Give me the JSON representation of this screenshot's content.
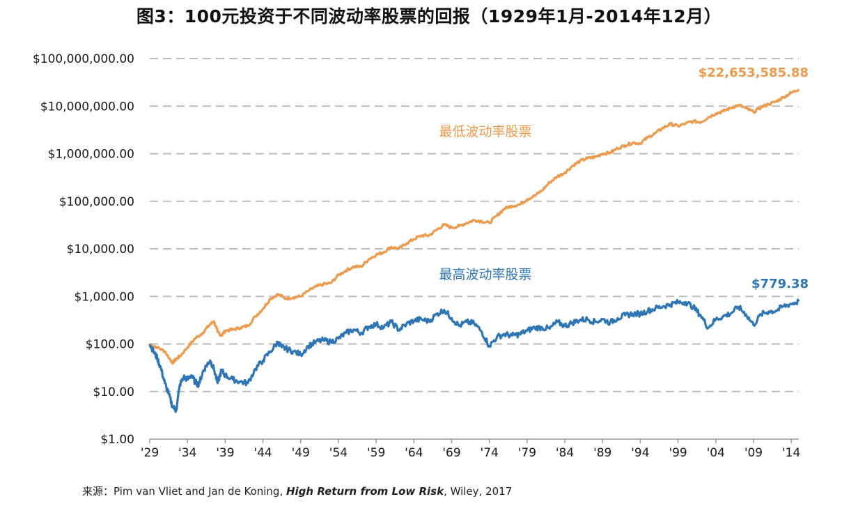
{
  "title": "图3：100元投资于不同波动率股票的回报（1929年1月-2014年12月）",
  "source": {
    "prefix": "来源：Pim van Vliet and Jan de Koning, ",
    "book": "High Return from Low Risk",
    "suffix": ", Wiley, 2017"
  },
  "colors": {
    "low_vol": "#EE9A4D",
    "high_vol": "#2E75B6",
    "grid": "#BBBBBB",
    "axis": "#9A9A9A"
  },
  "chart_data": {
    "type": "line",
    "title": "图3：100元投资于不同波动率股票的回报（1929年1月-2014年12月）",
    "xlabel": "",
    "ylabel": "",
    "y_scale": "log",
    "ylim": [
      1,
      100000000
    ],
    "xlim": [
      1929,
      2015
    ],
    "grid": "horizontal dashed",
    "yticks": [
      1,
      10,
      100,
      1000,
      10000,
      100000,
      1000000,
      10000000,
      100000000
    ],
    "ytick_labels": [
      "$1.00",
      "$10.00",
      "$100.00",
      "$1,000.00",
      "$10,000.00",
      "$100,000.00",
      "$1,000,000.00",
      "$10,000,000.00",
      "$100,000,000.00"
    ],
    "xticks": [
      1929,
      1934,
      1939,
      1944,
      1949,
      1954,
      1959,
      1964,
      1969,
      1974,
      1979,
      1984,
      1989,
      1994,
      1999,
      2004,
      2009,
      2014
    ],
    "xtick_labels": [
      "'29",
      "'34",
      "'39",
      "'44",
      "'49",
      "'54",
      "'59",
      "'64",
      "'69",
      "'74",
      "'79",
      "'84",
      "'89",
      "'94",
      "'99",
      "'04",
      "'09",
      "'14"
    ],
    "series": [
      {
        "name": "最低波动率股票",
        "color": "#EE9A4D",
        "end_label": "$22,653,585.88",
        "points": [
          [
            1929.0,
            100
          ],
          [
            1930.0,
            85
          ],
          [
            1931.0,
            70
          ],
          [
            1932.0,
            40
          ],
          [
            1932.5,
            48
          ],
          [
            1933.0,
            55
          ],
          [
            1934.0,
            85
          ],
          [
            1935.0,
            130
          ],
          [
            1936.0,
            170
          ],
          [
            1937.0,
            260
          ],
          [
            1937.5,
            300
          ],
          [
            1938.0,
            180
          ],
          [
            1938.5,
            150
          ],
          [
            1939.0,
            190
          ],
          [
            1940.0,
            200
          ],
          [
            1941.0,
            220
          ],
          [
            1942.0,
            240
          ],
          [
            1943.0,
            380
          ],
          [
            1944.0,
            550
          ],
          [
            1945.0,
            900
          ],
          [
            1946.0,
            1100
          ],
          [
            1947.0,
            900
          ],
          [
            1948.0,
            950
          ],
          [
            1949.0,
            1000
          ],
          [
            1950.0,
            1300
          ],
          [
            1951.0,
            1600
          ],
          [
            1952.0,
            1800
          ],
          [
            1953.0,
            1900
          ],
          [
            1954.0,
            2800
          ],
          [
            1955.0,
            3500
          ],
          [
            1956.0,
            4200
          ],
          [
            1957.0,
            4200
          ],
          [
            1958.0,
            6000
          ],
          [
            1959.0,
            7500
          ],
          [
            1960.0,
            8500
          ],
          [
            1961.0,
            11000
          ],
          [
            1962.0,
            10000
          ],
          [
            1963.0,
            13000
          ],
          [
            1964.0,
            16000
          ],
          [
            1965.0,
            19000
          ],
          [
            1966.0,
            19000
          ],
          [
            1967.0,
            25000
          ],
          [
            1968.0,
            32000
          ],
          [
            1969.0,
            28000
          ],
          [
            1970.0,
            30000
          ],
          [
            1971.0,
            35000
          ],
          [
            1972.0,
            40000
          ],
          [
            1973.0,
            38000
          ],
          [
            1974.0,
            35000
          ],
          [
            1975.0,
            50000
          ],
          [
            1976.0,
            70000
          ],
          [
            1977.0,
            80000
          ],
          [
            1978.0,
            85000
          ],
          [
            1979.0,
            110000
          ],
          [
            1980.0,
            130000
          ],
          [
            1981.0,
            170000
          ],
          [
            1982.0,
            250000
          ],
          [
            1983.0,
            330000
          ],
          [
            1984.0,
            400000
          ],
          [
            1985.0,
            550000
          ],
          [
            1986.0,
            700000
          ],
          [
            1987.0,
            800000
          ],
          [
            1988.0,
            850000
          ],
          [
            1989.0,
            1000000
          ],
          [
            1990.0,
            1050000
          ],
          [
            1991.0,
            1300000
          ],
          [
            1992.0,
            1500000
          ],
          [
            1993.0,
            1700000
          ],
          [
            1994.0,
            1650000
          ],
          [
            1995.0,
            2200000
          ],
          [
            1996.0,
            2700000
          ],
          [
            1997.0,
            3500000
          ],
          [
            1998.0,
            4200000
          ],
          [
            1999.0,
            3800000
          ],
          [
            2000.0,
            4300000
          ],
          [
            2001.0,
            4800000
          ],
          [
            2002.0,
            4600000
          ],
          [
            2003.0,
            5800000
          ],
          [
            2004.0,
            7000000
          ],
          [
            2005.0,
            7800000
          ],
          [
            2006.0,
            9200000
          ],
          [
            2007.0,
            10500000
          ],
          [
            2008.0,
            9000000
          ],
          [
            2009.0,
            7500000
          ],
          [
            2010.0,
            9500000
          ],
          [
            2011.0,
            11000000
          ],
          [
            2012.0,
            12500000
          ],
          [
            2013.0,
            15500000
          ],
          [
            2014.0,
            19000000
          ],
          [
            2015.0,
            22653585.88
          ]
        ]
      },
      {
        "name": "最高波动率股票",
        "color": "#2E75B6",
        "end_label": "$779.38",
        "points": [
          [
            1929.0,
            100
          ],
          [
            1929.5,
            70
          ],
          [
            1930.0,
            50
          ],
          [
            1930.5,
            30
          ],
          [
            1931.0,
            15
          ],
          [
            1931.5,
            9
          ],
          [
            1932.0,
            5
          ],
          [
            1932.5,
            4
          ],
          [
            1933.0,
            14
          ],
          [
            1933.5,
            20
          ],
          [
            1934.0,
            18
          ],
          [
            1934.5,
            22
          ],
          [
            1935.0,
            16
          ],
          [
            1935.5,
            14
          ],
          [
            1936.0,
            25
          ],
          [
            1936.5,
            35
          ],
          [
            1937.0,
            45
          ],
          [
            1937.5,
            30
          ],
          [
            1938.0,
            15
          ],
          [
            1938.5,
            28
          ],
          [
            1939.0,
            22
          ],
          [
            1940.0,
            18
          ],
          [
            1941.0,
            16
          ],
          [
            1942.0,
            15
          ],
          [
            1943.0,
            30
          ],
          [
            1944.0,
            45
          ],
          [
            1945.0,
            70
          ],
          [
            1946.0,
            110
          ],
          [
            1946.5,
            85
          ],
          [
            1947.0,
            80
          ],
          [
            1948.0,
            70
          ],
          [
            1949.0,
            60
          ],
          [
            1950.0,
            90
          ],
          [
            1951.0,
            110
          ],
          [
            1952.0,
            120
          ],
          [
            1953.0,
            110
          ],
          [
            1954.0,
            130
          ],
          [
            1955.0,
            170
          ],
          [
            1956.0,
            200
          ],
          [
            1957.0,
            170
          ],
          [
            1958.0,
            230
          ],
          [
            1959.0,
            260
          ],
          [
            1960.0,
            220
          ],
          [
            1961.0,
            290
          ],
          [
            1962.0,
            200
          ],
          [
            1963.0,
            260
          ],
          [
            1964.0,
            310
          ],
          [
            1965.0,
            330
          ],
          [
            1966.0,
            300
          ],
          [
            1967.0,
            420
          ],
          [
            1968.0,
            520
          ],
          [
            1969.0,
            350
          ],
          [
            1970.0,
            240
          ],
          [
            1971.0,
            290
          ],
          [
            1972.0,
            270
          ],
          [
            1973.0,
            180
          ],
          [
            1974.0,
            90
          ],
          [
            1975.0,
            140
          ],
          [
            1976.0,
            160
          ],
          [
            1977.0,
            150
          ],
          [
            1978.0,
            160
          ],
          [
            1979.0,
            190
          ],
          [
            1980.0,
            220
          ],
          [
            1981.0,
            220
          ],
          [
            1982.0,
            210
          ],
          [
            1983.0,
            290
          ],
          [
            1984.0,
            240
          ],
          [
            1985.0,
            280
          ],
          [
            1986.0,
            320
          ],
          [
            1987.0,
            330
          ],
          [
            1988.0,
            290
          ],
          [
            1989.0,
            330
          ],
          [
            1990.0,
            280
          ],
          [
            1991.0,
            350
          ],
          [
            1992.0,
            400
          ],
          [
            1993.0,
            430
          ],
          [
            1994.0,
            430
          ],
          [
            1995.0,
            500
          ],
          [
            1996.0,
            560
          ],
          [
            1997.0,
            620
          ],
          [
            1998.0,
            680
          ],
          [
            1999.0,
            750
          ],
          [
            2000.0,
            760
          ],
          [
            2001.0,
            600
          ],
          [
            2002.0,
            400
          ],
          [
            2003.0,
            220
          ],
          [
            2004.0,
            330
          ],
          [
            2005.0,
            380
          ],
          [
            2006.0,
            440
          ],
          [
            2007.0,
            600
          ],
          [
            2008.0,
            420
          ],
          [
            2009.0,
            250
          ],
          [
            2010.0,
            420
          ],
          [
            2011.0,
            480
          ],
          [
            2012.0,
            500
          ],
          [
            2013.0,
            620
          ],
          [
            2014.0,
            700
          ],
          [
            2015.0,
            779.38
          ]
        ]
      }
    ]
  }
}
